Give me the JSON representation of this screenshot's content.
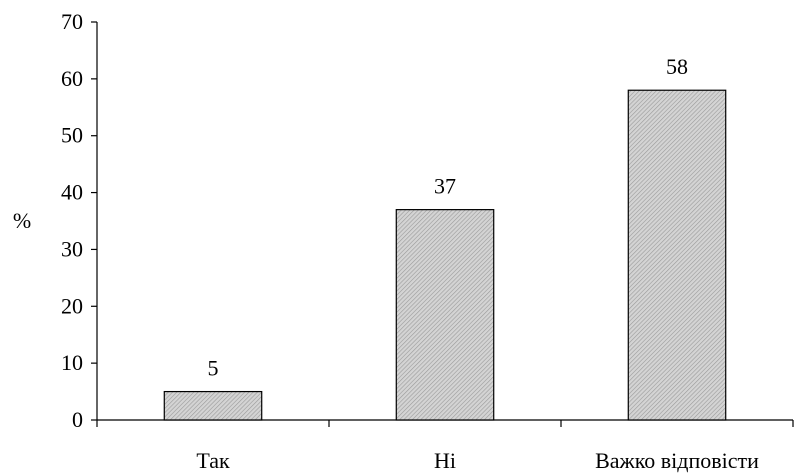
{
  "chart_data": {
    "type": "bar",
    "categories": [
      "Так",
      "Ні",
      "Важко відповісти"
    ],
    "values": [
      5,
      37,
      58
    ],
    "data_labels": [
      "5",
      "37",
      "58"
    ],
    "title": "",
    "xlabel": "",
    "ylabel": "%",
    "ylim": [
      0,
      70
    ],
    "yticks": [
      0,
      10,
      20,
      30,
      40,
      50,
      60,
      70
    ],
    "grid": false,
    "legend": "none",
    "bar_fill": "#c8c8c8",
    "bar_hatch_color": "#9a9a9a",
    "axis_color": "#000000"
  }
}
